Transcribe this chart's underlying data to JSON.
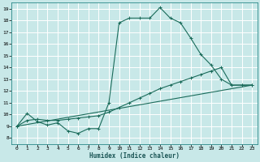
{
  "xlabel": "Humidex (Indice chaleur)",
  "bg_color": "#c8e8e8",
  "line_color": "#1a6b5a",
  "grid_color": "#ffffff",
  "xlim": [
    -0.5,
    23.5
  ],
  "ylim": [
    7.5,
    19.5
  ],
  "xticks": [
    0,
    1,
    2,
    3,
    4,
    5,
    6,
    7,
    8,
    9,
    10,
    11,
    12,
    13,
    14,
    15,
    16,
    17,
    18,
    19,
    20,
    21,
    22,
    23
  ],
  "yticks": [
    8,
    9,
    10,
    11,
    12,
    13,
    14,
    15,
    16,
    17,
    18,
    19
  ],
  "series1_x": [
    0,
    1,
    2,
    3,
    4,
    5,
    6,
    7,
    8,
    9,
    10,
    11,
    12,
    13,
    14,
    15,
    16,
    17,
    18,
    19,
    20,
    21,
    22,
    23
  ],
  "series1_y": [
    9.0,
    10.1,
    9.4,
    9.1,
    9.3,
    8.6,
    8.4,
    8.8,
    8.8,
    11.0,
    17.8,
    18.2,
    18.2,
    18.2,
    19.1,
    18.2,
    17.8,
    16.5,
    15.1,
    14.2,
    13.0,
    12.5,
    12.5,
    12.5
  ],
  "series2_x": [
    0,
    1,
    2,
    3,
    4,
    5,
    6,
    7,
    8,
    9,
    10,
    11,
    12,
    13,
    14,
    15,
    16,
    17,
    18,
    19,
    20,
    21,
    22,
    23
  ],
  "series2_y": [
    9.0,
    9.5,
    9.6,
    9.5,
    9.5,
    9.6,
    9.7,
    9.8,
    9.9,
    10.2,
    10.6,
    11.0,
    11.4,
    11.8,
    12.2,
    12.5,
    12.8,
    13.1,
    13.4,
    13.7,
    14.0,
    12.5,
    12.5,
    12.5
  ],
  "series3_x": [
    0,
    23
  ],
  "series3_y": [
    9.0,
    12.5
  ]
}
